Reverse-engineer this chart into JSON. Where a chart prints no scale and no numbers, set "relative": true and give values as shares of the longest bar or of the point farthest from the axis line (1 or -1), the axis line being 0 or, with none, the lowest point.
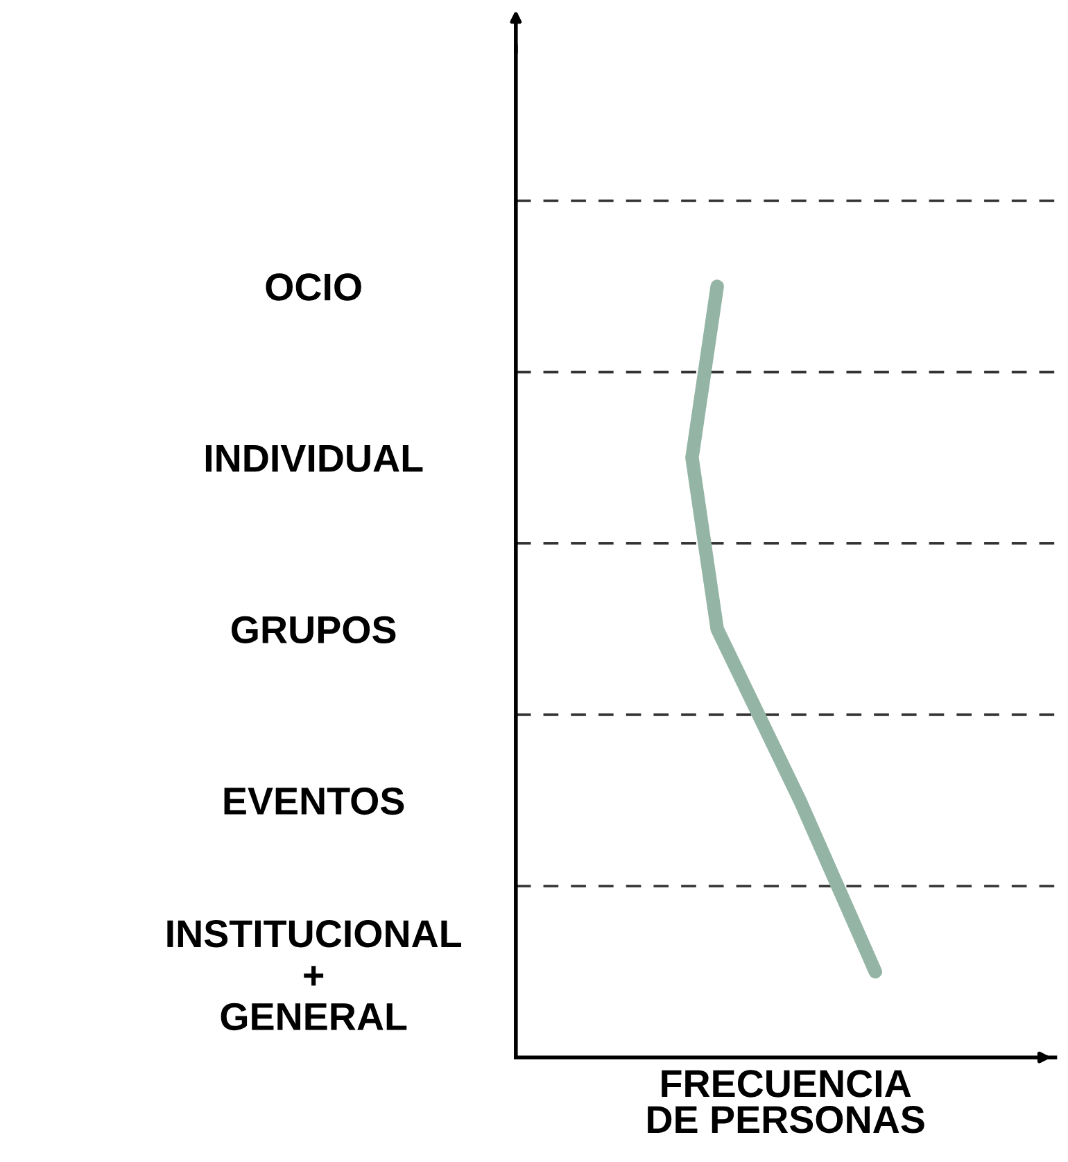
{
  "chart_data": {
    "type": "line",
    "orientation": "horizontal",
    "relative": true,
    "xlabel": "FRECUENCIA\nDE PERSONAS",
    "categories": [
      "OCIO",
      "INDIVIDUAL",
      "GRUPOS",
      "EVENTOS",
      "INSTITUCIONAL\n+\nGENERAL"
    ],
    "series": [
      {
        "color": "#94b5a6",
        "values": [
          0.56,
          0.49,
          0.56,
          0.79,
          1.0
        ]
      }
    ],
    "grid": "y",
    "line_style": "solid",
    "marker": "none",
    "legend": false
  }
}
